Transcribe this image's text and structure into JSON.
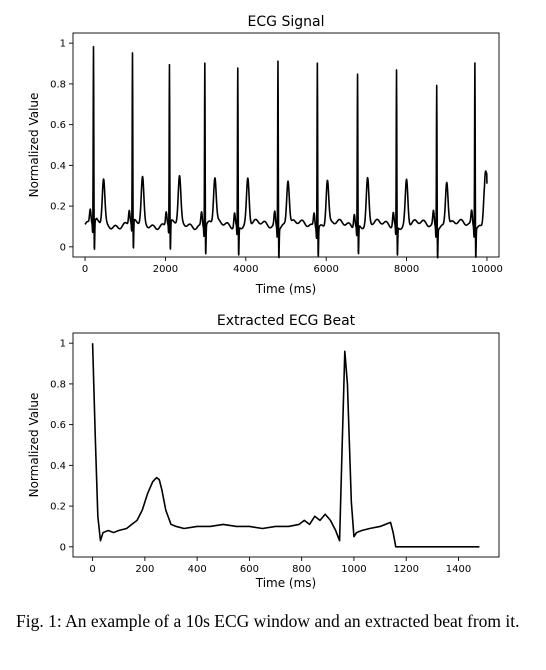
{
  "caption": "Fig. 1: An example of a 10s ECG window and an extracted beat from it.",
  "chart_data": [
    {
      "type": "line",
      "title": "ECG Signal",
      "xlabel": "Time (ms)",
      "ylabel": "Normalized Value",
      "xlim": [
        -300,
        10300
      ],
      "ylim": [
        -0.05,
        1.05
      ],
      "xticks": [
        0,
        2000,
        4000,
        6000,
        8000,
        10000
      ],
      "yticks": [
        0.0,
        0.2,
        0.4,
        0.6,
        0.8,
        1.0
      ],
      "grid": false,
      "series_color": "#000000",
      "beats": [
        {
          "r_time": 210,
          "r_peak": 1.0
        },
        {
          "r_time": 1180,
          "r_peak": 0.96
        },
        {
          "r_time": 2100,
          "r_peak": 0.91
        },
        {
          "r_time": 2980,
          "r_peak": 0.94
        },
        {
          "r_time": 3800,
          "r_peak": 0.91
        },
        {
          "r_time": 4800,
          "r_peak": 0.96
        },
        {
          "r_time": 5780,
          "r_peak": 0.95
        },
        {
          "r_time": 6780,
          "r_peak": 0.88
        },
        {
          "r_time": 7750,
          "r_peak": 0.9
        },
        {
          "r_time": 8750,
          "r_peak": 0.84
        },
        {
          "r_time": 9700,
          "r_peak": 0.95
        }
      ],
      "start": {
        "x": 0,
        "y": 0.11
      },
      "end": {
        "x": 10000,
        "y": 0.31
      }
    },
    {
      "type": "line",
      "title": "Extracted ECG Beat",
      "xlabel": "Time (ms)",
      "ylabel": "Normalized Value",
      "xlim": [
        -75,
        1555
      ],
      "ylim": [
        -0.05,
        1.05
      ],
      "xticks": [
        0,
        200,
        400,
        600,
        800,
        1000,
        1200,
        1400
      ],
      "yticks": [
        0.0,
        0.2,
        0.4,
        0.6,
        0.8,
        1.0
      ],
      "grid": false,
      "series_color": "#000000",
      "x": [
        0,
        10,
        20,
        30,
        40,
        60,
        80,
        100,
        130,
        150,
        170,
        190,
        210,
        230,
        245,
        255,
        265,
        280,
        300,
        320,
        350,
        400,
        450,
        500,
        550,
        600,
        650,
        700,
        750,
        790,
        810,
        830,
        850,
        870,
        890,
        910,
        930,
        945,
        955,
        965,
        975,
        990,
        1000,
        1010,
        1030,
        1060,
        1100,
        1140,
        1150,
        1160,
        1300,
        1480
      ],
      "y": [
        1.0,
        0.55,
        0.15,
        0.03,
        0.07,
        0.08,
        0.07,
        0.08,
        0.09,
        0.11,
        0.13,
        0.18,
        0.26,
        0.32,
        0.34,
        0.33,
        0.28,
        0.18,
        0.11,
        0.1,
        0.09,
        0.1,
        0.1,
        0.11,
        0.1,
        0.1,
        0.09,
        0.1,
        0.1,
        0.11,
        0.13,
        0.11,
        0.15,
        0.13,
        0.16,
        0.13,
        0.08,
        0.03,
        0.5,
        0.96,
        0.8,
        0.22,
        0.05,
        0.07,
        0.08,
        0.09,
        0.1,
        0.12,
        0.07,
        0.0,
        0.0,
        0.0
      ]
    }
  ]
}
